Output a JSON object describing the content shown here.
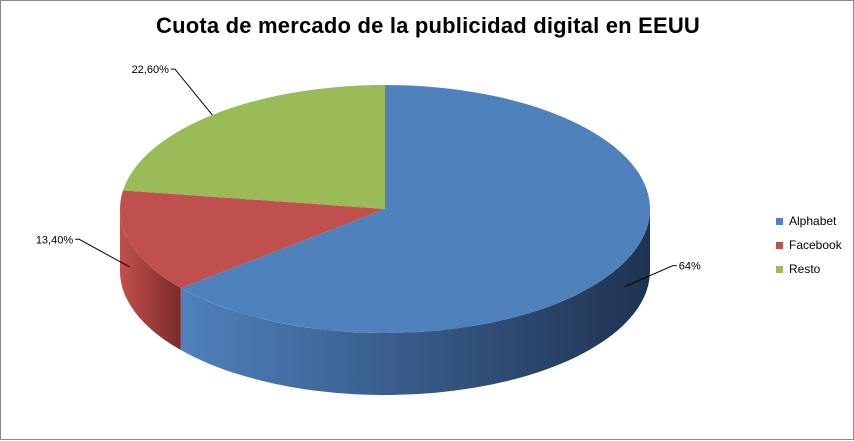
{
  "chart_data": {
    "type": "pie",
    "title": "Cuota de mercado de la publicidad digital en EEUU",
    "slices": [
      {
        "name": "Alphabet",
        "value": 64,
        "label": "64%",
        "color": "#4f81bd",
        "dark_color": "#1f3251"
      },
      {
        "name": "Facebook",
        "value": 13.4,
        "label": "13,40%",
        "color": "#c0504d",
        "dark_color": "#7b2b29"
      },
      {
        "name": "Resto",
        "value": 22.6,
        "label": "22,60%",
        "color": "#9bbb59",
        "dark_color": "#5f7a2c"
      }
    ],
    "legend_position": "right",
    "three_d": true,
    "grid": false
  }
}
